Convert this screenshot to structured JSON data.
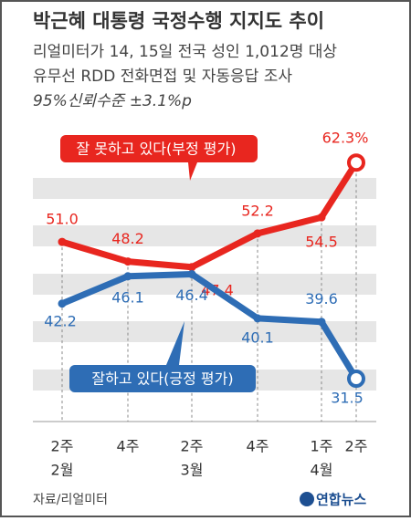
{
  "chart_data": {
    "type": "line",
    "title": "박근혜 대통령 국정수행 지지도 추이",
    "subtitle": [
      "리얼미터가 14, 15일 전국 성인 1,012명 대상",
      "유무선 RDD 전화면접 및 자동응답 조사",
      "95%신뢰수준 ±3.1%p"
    ],
    "categories": [
      "2주",
      "4주",
      "2주",
      "4주",
      "1주",
      "2주"
    ],
    "month_labels": [
      "2월",
      null,
      "3월",
      null,
      "4월",
      null
    ],
    "series": [
      {
        "name": "잘 못하고 있다(부정 평가)",
        "color": "#e8261f",
        "values": [
          51.0,
          48.2,
          47.4,
          52.2,
          54.5,
          62.3
        ],
        "value_labels": [
          "51.0",
          "48.2",
          "47.4",
          "52.2",
          "54.5",
          "62.3%"
        ]
      },
      {
        "name": "잘하고 있다(긍정 평가)",
        "color": "#2e6db5",
        "values": [
          42.2,
          46.1,
          46.4,
          40.1,
          39.6,
          31.5
        ],
        "value_labels": [
          "42.2",
          "46.1",
          "46.4",
          "40.1",
          "39.6",
          "31.5"
        ]
      }
    ],
    "ylim": [
      25,
      70
    ],
    "source": "자료/리얼미터",
    "logo": "연합뉴스"
  }
}
